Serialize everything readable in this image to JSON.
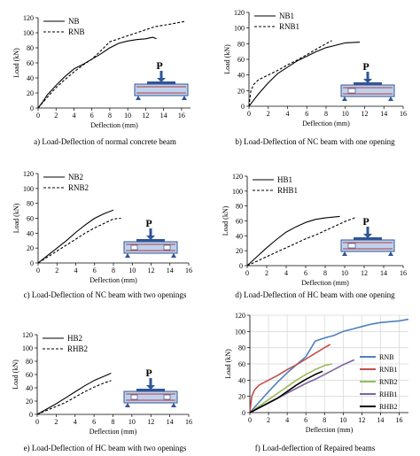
{
  "charts": [
    {
      "caption": "a) Load-Deflection of normal concrete beam",
      "chart_data": {
        "type": "line",
        "xlabel": "Deflection (mm)",
        "ylabel": "Load (kN)",
        "xlim": [
          0,
          17
        ],
        "ylim": [
          0,
          120
        ],
        "xticks": [
          0,
          2,
          4,
          6,
          8,
          10,
          12,
          14,
          16
        ],
        "yticks": [
          0,
          20,
          40,
          60,
          80,
          100,
          120
        ],
        "grid": false,
        "legend_position": "top-left",
        "beam_sketch": "no-opening",
        "series": [
          {
            "name": "NB",
            "style": "solid",
            "color": "#000000",
            "x": [
              0,
              0.5,
              1,
              2,
              3,
              4,
              5,
              6,
              7,
              8,
              9,
              10,
              11,
              12,
              12.8,
              13.2
            ],
            "y": [
              0,
              8,
              17,
              30,
              42,
              52,
              58,
              65,
              72,
              80,
              86,
              89,
              91,
              92,
              94,
              92
            ]
          },
          {
            "name": "RNB",
            "style": "dashed",
            "color": "#000000",
            "x": [
              0,
              1,
              2,
              3,
              4,
              5,
              6,
              7,
              8,
              9,
              10,
              11,
              12,
              13,
              14,
              15,
              16.3
            ],
            "y": [
              0,
              14,
              27,
              38,
              48,
              57,
              65,
              76,
              88,
              92,
              96,
              100,
              104,
              108,
              110,
              112,
              115
            ]
          }
        ]
      }
    },
    {
      "caption": "b) Load-Deflection of NC beam with one opening",
      "chart_data": {
        "type": "line",
        "xlabel": "Deflection (mm)",
        "ylabel": "Load (kN)",
        "xlim": [
          0,
          16
        ],
        "ylim": [
          0,
          120
        ],
        "xticks": [
          0,
          2,
          4,
          6,
          8,
          10,
          12,
          14,
          16
        ],
        "yticks": [
          0,
          20,
          40,
          60,
          80,
          100,
          120
        ],
        "grid": false,
        "legend_position": "top-left",
        "beam_sketch": "one-opening",
        "series": [
          {
            "name": "NB1",
            "style": "solid",
            "color": "#000000",
            "x": [
              0,
              0.5,
              1,
              2,
              3,
              4,
              5,
              6,
              7,
              8,
              9,
              10,
              11.5
            ],
            "y": [
              0,
              8,
              16,
              30,
              42,
              50,
              58,
              64,
              70,
              75,
              78,
              81,
              82
            ]
          },
          {
            "name": "RNB1",
            "style": "dashed",
            "color": "#000000",
            "x": [
              0,
              0.2,
              0.5,
              1,
              2,
              3,
              4,
              5,
              6,
              7,
              8,
              8.6
            ],
            "y": [
              0,
              20,
              28,
              34,
              40,
              46,
              53,
              59,
              66,
              73,
              80,
              84
            ]
          }
        ]
      }
    },
    {
      "caption": "c) Load-Deflection of NC beam with two openings",
      "chart_data": {
        "type": "line",
        "xlabel": "Deflection (mm)",
        "ylabel": "Load (kN)",
        "xlim": [
          0,
          16
        ],
        "ylim": [
          0,
          120
        ],
        "xticks": [
          0,
          2,
          4,
          6,
          8,
          10,
          12,
          14,
          16
        ],
        "yticks": [
          0,
          20,
          40,
          60,
          80,
          100,
          120
        ],
        "grid": false,
        "legend_position": "top-left",
        "beam_sketch": "two-openings",
        "series": [
          {
            "name": "NB2",
            "style": "solid",
            "color": "#000000",
            "x": [
              0,
              1,
              2,
              3,
              4,
              5,
              6,
              7,
              8
            ],
            "y": [
              0,
              10,
              20,
              30,
              41,
              51,
              60,
              66,
              71
            ]
          },
          {
            "name": "RNB2",
            "style": "dashed",
            "color": "#000000",
            "x": [
              0,
              1,
              2,
              3,
              4,
              5,
              6,
              7,
              8,
              8.8
            ],
            "y": [
              0,
              8,
              16,
              24,
              32,
              40,
              47,
              53,
              59,
              60
            ]
          }
        ]
      }
    },
    {
      "caption": "d) Load-Deflection of HC beam with one opening",
      "chart_data": {
        "type": "line",
        "xlabel": "Deflection (mm)",
        "ylabel": "Load (kN)",
        "xlim": [
          0,
          16
        ],
        "ylim": [
          0,
          120
        ],
        "xticks": [
          0,
          2,
          4,
          6,
          8,
          10,
          12,
          14,
          16
        ],
        "yticks": [
          0,
          20,
          40,
          60,
          80,
          100,
          120
        ],
        "grid": false,
        "legend_position": "top-left",
        "beam_sketch": "one-opening",
        "series": [
          {
            "name": "HB1",
            "style": "solid",
            "color": "#000000",
            "x": [
              0,
              1,
              2,
              3,
              4,
              5,
              6,
              7,
              8,
              9.5
            ],
            "y": [
              0,
              12,
              24,
              35,
              45,
              52,
              58,
              62,
              64,
              66
            ]
          },
          {
            "name": "RHB1",
            "style": "dashed",
            "color": "#000000",
            "x": [
              0,
              1,
              2,
              3,
              4,
              5,
              6,
              7,
              8,
              9,
              10,
              11.2
            ],
            "y": [
              0,
              6,
              12,
              18,
              24,
              30,
              36,
              41,
              47,
              53,
              59,
              65
            ]
          }
        ]
      }
    },
    {
      "caption": "e) Load-Deflection of HC beam with two openings",
      "chart_data": {
        "type": "line",
        "xlabel": "Deflection (mm)",
        "ylabel": "Load (kN)",
        "xlim": [
          0,
          16
        ],
        "ylim": [
          0,
          120
        ],
        "xticks": [
          0,
          2,
          4,
          6,
          8,
          10,
          12,
          14,
          16
        ],
        "yticks": [
          0,
          20,
          40,
          60,
          80,
          100,
          120
        ],
        "grid": false,
        "legend_position": "top-left",
        "beam_sketch": "two-openings",
        "series": [
          {
            "name": "HB2",
            "style": "solid",
            "color": "#000000",
            "x": [
              0,
              1,
              2,
              3,
              4,
              5,
              6,
              7,
              7.8
            ],
            "y": [
              0,
              8,
              16,
              25,
              34,
              43,
              51,
              57,
              62
            ]
          },
          {
            "name": "RHB2",
            "style": "dashed",
            "color": "#000000",
            "x": [
              0,
              1,
              2,
              3,
              4,
              5,
              6,
              7,
              7.8
            ],
            "y": [
              0,
              6,
              12,
              18,
              26,
              34,
              41,
              47,
              51
            ]
          }
        ]
      }
    },
    {
      "caption": "f) Load-deflection of Repaired beams",
      "chart_data": {
        "type": "line",
        "xlabel": "Deflection (mm)",
        "ylabel": "Load (kN)",
        "xlim": [
          0,
          17
        ],
        "ylim": [
          0,
          120
        ],
        "xticks": [
          0,
          2,
          4,
          6,
          8,
          10,
          12,
          14,
          16
        ],
        "yticks": [
          0,
          20,
          40,
          60,
          80,
          100,
          120
        ],
        "grid": true,
        "legend_position": "right",
        "beam_sketch": "none",
        "series": [
          {
            "name": "RNB",
            "style": "solid",
            "color": "#4f81bd",
            "x": [
              0,
              1,
              2,
              3,
              4,
              5,
              6,
              7,
              8,
              9,
              10,
              11,
              12,
              13,
              14,
              15,
              16,
              17
            ],
            "y": [
              0,
              13,
              26,
              38,
              49,
              59,
              69,
              88,
              92,
              95,
              100,
              103,
              106,
              109,
              111,
              112,
              113,
              115
            ]
          },
          {
            "name": "RNB1",
            "style": "solid",
            "color": "#c0504d",
            "x": [
              0,
              0.2,
              0.5,
              1,
              2,
              3,
              4,
              5,
              6,
              7,
              8,
              8.6
            ],
            "y": [
              0,
              20,
              28,
              34,
              40,
              46,
              53,
              59,
              66,
              73,
              80,
              84
            ]
          },
          {
            "name": "RNB2",
            "style": "solid",
            "color": "#9bbb59",
            "x": [
              0,
              1,
              2,
              3,
              4,
              5,
              6,
              7,
              8,
              8.8
            ],
            "y": [
              0,
              8,
              16,
              24,
              32,
              40,
              47,
              53,
              58,
              60
            ]
          },
          {
            "name": "RHB1",
            "style": "solid",
            "color": "#8064a2",
            "x": [
              0,
              1,
              2,
              3,
              4,
              5,
              6,
              7,
              8,
              9,
              10,
              11.2
            ],
            "y": [
              0,
              6,
              12,
              18,
              24,
              30,
              36,
              41,
              47,
              53,
              59,
              65
            ]
          },
          {
            "name": "RHB2",
            "style": "solid",
            "color": "#000000",
            "x": [
              0,
              1,
              2,
              3,
              4,
              5,
              6,
              7,
              7.8
            ],
            "y": [
              0,
              6,
              12,
              18,
              26,
              34,
              41,
              47,
              51
            ]
          }
        ]
      }
    }
  ],
  "beam_sketch_label": "P",
  "beam_colors": {
    "fill": "#bcd3ee",
    "outline": "#2f5597",
    "rebar": "#c00000",
    "load": "#2f5597"
  }
}
